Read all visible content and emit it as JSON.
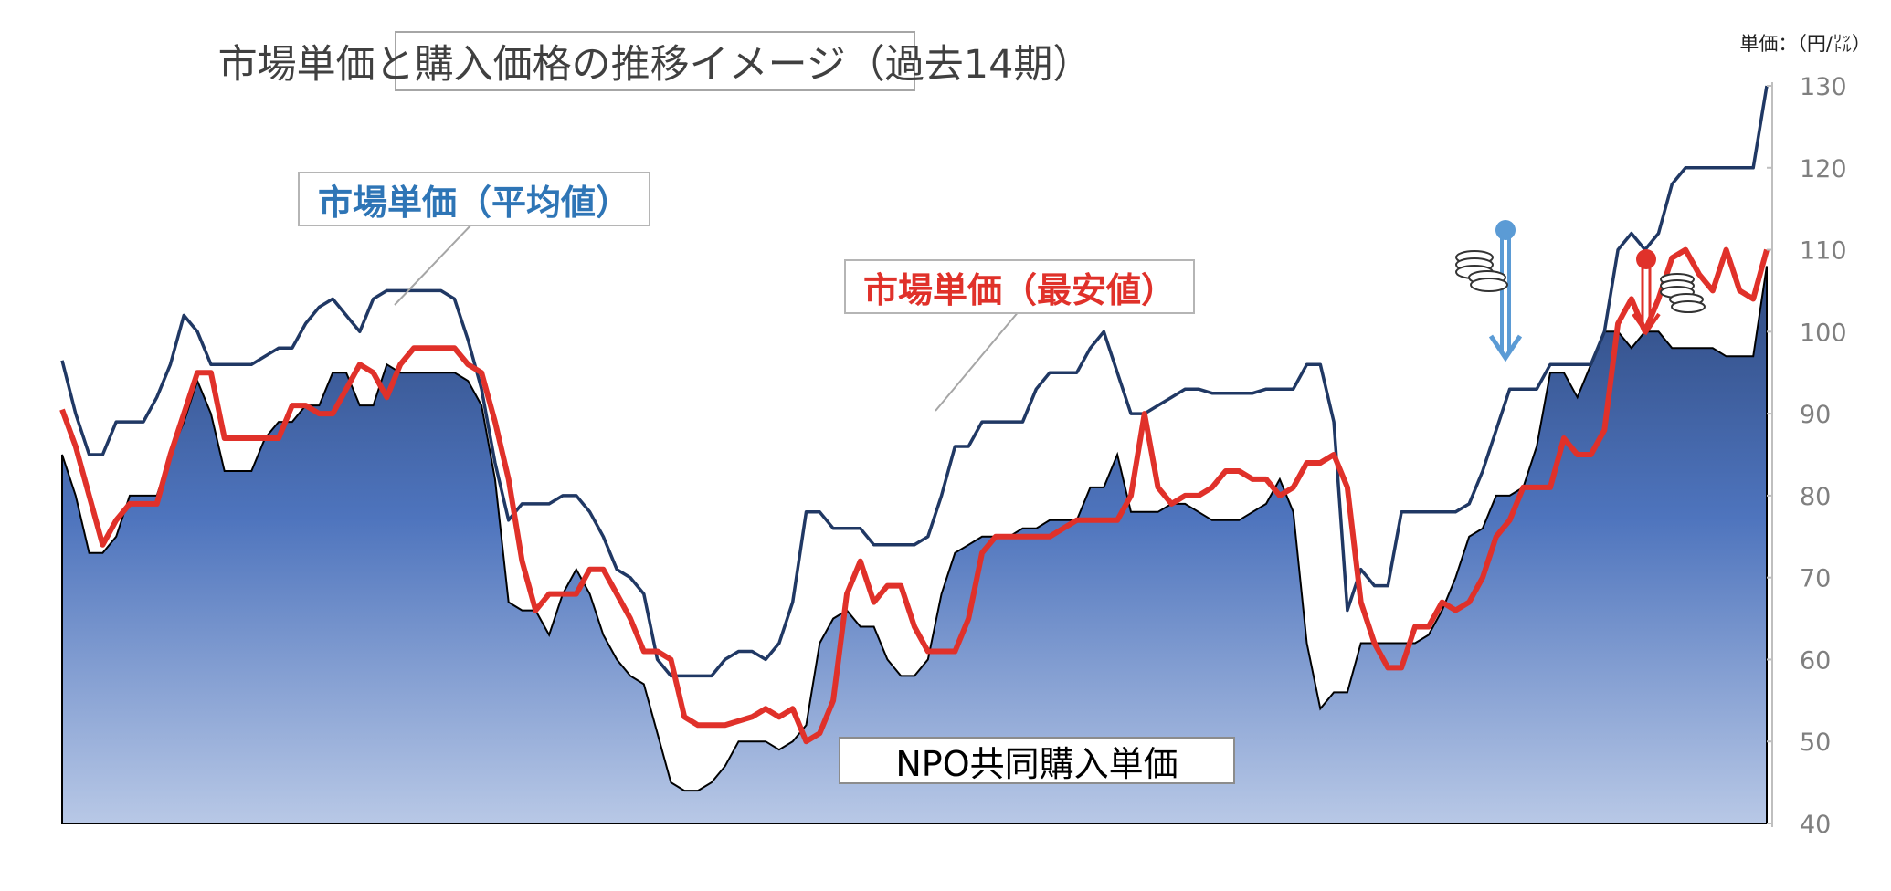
{
  "title": "市場単価と購入価格の推移イメージ（過去14期）",
  "unit_label": "単価：（円/㍑）",
  "labels": {
    "avg": "市場単価（平均値）",
    "min": "市場単価（最安値）",
    "npo": "NPO共同購入単価"
  },
  "colors": {
    "avg_line": "#203864",
    "min_line": "#e0312a",
    "area_top": "#2f4a80",
    "area_mid": "#4e74bd",
    "area_bottom": "#b8c8e6",
    "arrow_blue": "#5b9bd5",
    "arrow_red": "#e0312a"
  },
  "chart_data": {
    "type": "area",
    "ylim": [
      40,
      130
    ],
    "yticks": [
      40,
      50,
      60,
      70,
      80,
      90,
      100,
      110,
      120,
      130
    ],
    "x_count": 127,
    "series": [
      {
        "name": "市場単価（平均値）",
        "type": "line",
        "values": [
          96.5,
          90,
          85,
          85,
          89,
          89,
          89,
          92,
          96,
          102,
          100,
          96,
          96,
          96,
          96,
          97,
          98,
          98,
          101,
          103,
          104,
          102,
          100,
          104,
          105,
          105,
          105,
          105,
          105,
          104,
          99,
          93,
          84,
          77,
          79,
          79,
          79,
          80,
          80,
          78,
          75,
          71,
          70,
          68,
          60,
          58,
          58,
          58,
          58,
          60,
          61,
          61,
          60,
          62,
          67,
          78,
          78,
          76,
          76,
          76,
          74,
          74,
          74,
          74,
          75,
          80,
          86,
          86,
          89,
          89,
          89,
          89,
          93,
          95,
          95,
          95,
          98,
          100,
          95,
          90,
          90,
          91,
          92,
          93,
          93,
          92.5,
          92.5,
          92.5,
          92.5,
          93,
          93,
          93,
          96,
          96,
          89,
          66,
          71,
          69,
          69,
          78,
          78,
          78,
          78,
          78,
          79,
          83,
          88,
          93,
          93,
          93,
          96,
          96,
          96,
          96,
          100,
          110,
          112,
          110,
          112,
          118,
          120,
          120,
          120,
          120,
          120,
          120,
          130
        ]
      },
      {
        "name": "市場単価（最安値）",
        "type": "line",
        "values": [
          90.5,
          86,
          80,
          74,
          77,
          79,
          79,
          79,
          85,
          90,
          95,
          95,
          87,
          87,
          87,
          87,
          87,
          91,
          91,
          90,
          90,
          93,
          96,
          95,
          92,
          96,
          98,
          98,
          98,
          98,
          96,
          95,
          89,
          82,
          72,
          66,
          68,
          68,
          68,
          71,
          71,
          68,
          65,
          61,
          61,
          60,
          53,
          52,
          52,
          52,
          52.5,
          53,
          54,
          53,
          54,
          50,
          51,
          55,
          68,
          72,
          67,
          69,
          69,
          64,
          61,
          61,
          61,
          65,
          73,
          75,
          75,
          75,
          75,
          75,
          76,
          77,
          77,
          77,
          77,
          80,
          90,
          81,
          79,
          80,
          80,
          81,
          83,
          83,
          82,
          82,
          80,
          81,
          84,
          84,
          85,
          81,
          67,
          62,
          59,
          59,
          64,
          64,
          67,
          66,
          67,
          70,
          75,
          77,
          81,
          81,
          81,
          87,
          85,
          85,
          88,
          101,
          104,
          100,
          104,
          109,
          110,
          107,
          105,
          110,
          105,
          104,
          110
        ]
      },
      {
        "name": "NPO共同購入単価",
        "type": "area",
        "values": [
          85,
          80,
          73,
          73,
          75,
          80,
          80,
          80,
          85,
          89,
          94,
          90,
          83,
          83,
          83,
          87,
          89,
          89,
          91,
          91,
          95,
          95,
          91,
          91,
          96,
          95,
          95,
          95,
          95,
          95,
          94,
          91,
          82,
          67,
          66,
          66,
          63,
          68,
          71,
          68,
          63,
          60,
          58,
          57,
          51,
          45,
          44,
          44,
          45,
          47,
          50,
          50,
          50,
          49,
          50,
          52,
          62,
          65,
          66,
          64,
          64,
          60,
          58,
          58,
          60,
          68,
          73,
          74,
          75,
          75,
          75,
          76,
          76,
          77,
          77,
          77,
          81,
          81,
          85,
          78,
          78,
          78,
          79,
          79,
          78,
          77,
          77,
          77,
          78,
          79,
          82,
          78,
          62,
          54,
          56,
          56,
          62,
          62,
          62,
          62,
          62,
          63,
          66,
          70,
          75,
          76,
          80,
          80,
          81,
          86,
          95,
          95,
          92,
          96,
          100,
          100,
          98,
          100,
          100,
          98,
          98,
          98,
          98,
          97,
          97,
          97,
          108
        ]
      }
    ]
  }
}
